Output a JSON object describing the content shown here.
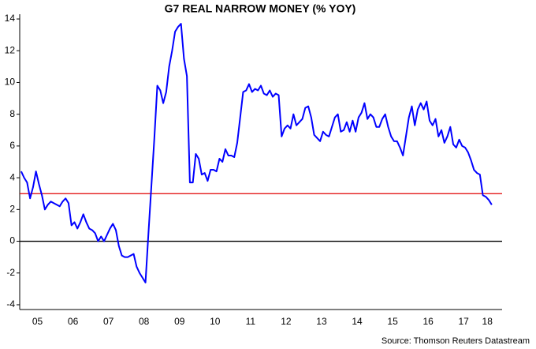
{
  "chart_data": {
    "type": "line",
    "title": "G7 REAL NARROW MONEY (% YOY)",
    "source": "Source: Thomson Reuters Datastream",
    "categories": [
      null,
      null,
      null,
      null,
      null,
      null,
      "05",
      null,
      null,
      null,
      null,
      null,
      null,
      null,
      null,
      null,
      null,
      null,
      "06",
      null,
      null,
      null,
      null,
      null,
      null,
      null,
      null,
      null,
      null,
      null,
      "07",
      null,
      null,
      null,
      null,
      null,
      null,
      null,
      null,
      null,
      null,
      null,
      "08",
      null,
      null,
      null,
      null,
      null,
      null,
      null,
      null,
      null,
      null,
      null,
      "09",
      null,
      null,
      null,
      null,
      null,
      null,
      null,
      null,
      null,
      null,
      null,
      "10",
      null,
      null,
      null,
      null,
      null,
      null,
      null,
      null,
      null,
      null,
      null,
      "11",
      null,
      null,
      null,
      null,
      null,
      null,
      null,
      null,
      null,
      null,
      null,
      "12",
      null,
      null,
      null,
      null,
      null,
      null,
      null,
      null,
      null,
      null,
      null,
      "13",
      null,
      null,
      null,
      null,
      null,
      null,
      null,
      null,
      null,
      null,
      null,
      "14",
      null,
      null,
      null,
      null,
      null,
      null,
      null,
      null,
      null,
      null,
      null,
      "15",
      null,
      null,
      null,
      null,
      null,
      null,
      null,
      null,
      null,
      null,
      null,
      "16",
      null,
      null,
      null,
      null,
      null,
      null,
      null,
      null,
      null,
      null,
      null,
      "17",
      null,
      null,
      null,
      null,
      null,
      null,
      null,
      "18",
      null
    ],
    "series": [
      {
        "color": "#0000ff",
        "values": [
          4.4,
          4.0,
          3.7,
          2.7,
          3.4,
          4.4,
          3.6,
          2.9,
          2.0,
          2.3,
          2.5,
          2.4,
          2.3,
          2.2,
          2.5,
          2.7,
          2.4,
          1.0,
          1.2,
          0.8,
          1.2,
          1.7,
          1.2,
          0.8,
          0.7,
          0.5,
          0.0,
          0.3,
          0.0,
          0.4,
          0.8,
          1.1,
          0.7,
          -0.3,
          -0.9,
          -1.0,
          -1.0,
          -0.9,
          -0.8,
          -1.6,
          -2.0,
          -2.3,
          -2.6,
          0.5,
          3.5,
          6.5,
          9.8,
          9.5,
          8.7,
          9.4,
          11.0,
          12.0,
          13.2,
          13.5,
          13.7,
          11.5,
          10.4,
          3.7,
          3.7,
          5.5,
          5.2,
          4.2,
          4.3,
          3.8,
          4.5,
          4.5,
          4.4,
          5.2,
          5.0,
          5.8,
          5.4,
          5.4,
          5.3,
          6.2,
          7.8,
          9.4,
          9.5,
          9.9,
          9.4,
          9.6,
          9.5,
          9.8,
          9.3,
          9.2,
          9.5,
          9.1,
          9.3,
          9.2,
          6.6,
          7.1,
          7.3,
          7.1,
          8.0,
          7.3,
          7.5,
          7.7,
          8.4,
          8.5,
          7.8,
          6.7,
          6.5,
          6.3,
          6.9,
          6.7,
          6.6,
          7.2,
          7.8,
          8.0,
          6.9,
          7.0,
          7.5,
          6.9,
          7.6,
          6.9,
          7.8,
          8.1,
          8.7,
          7.7,
          8.0,
          7.8,
          7.2,
          7.2,
          7.7,
          8.0,
          7.2,
          6.6,
          6.3,
          6.3,
          5.9,
          5.4,
          6.6,
          7.8,
          8.5,
          7.3,
          8.3,
          8.7,
          8.3,
          8.8,
          7.6,
          7.3,
          7.7,
          6.6,
          7.0,
          6.2,
          6.6,
          7.2,
          6.1,
          5.9,
          6.4,
          6.0,
          5.9,
          5.6,
          5.1,
          4.5,
          4.3,
          4.2,
          2.9,
          2.8,
          2.6,
          2.3
        ]
      }
    ],
    "reference_lines": [
      {
        "value": 3,
        "color": "#e00000"
      },
      {
        "value": 0,
        "color": "#000000"
      }
    ],
    "ylim": [
      -4.3,
      14.3
    ],
    "yticks": [
      -4,
      -2,
      0,
      2,
      4,
      6,
      8,
      10,
      12,
      14
    ]
  }
}
